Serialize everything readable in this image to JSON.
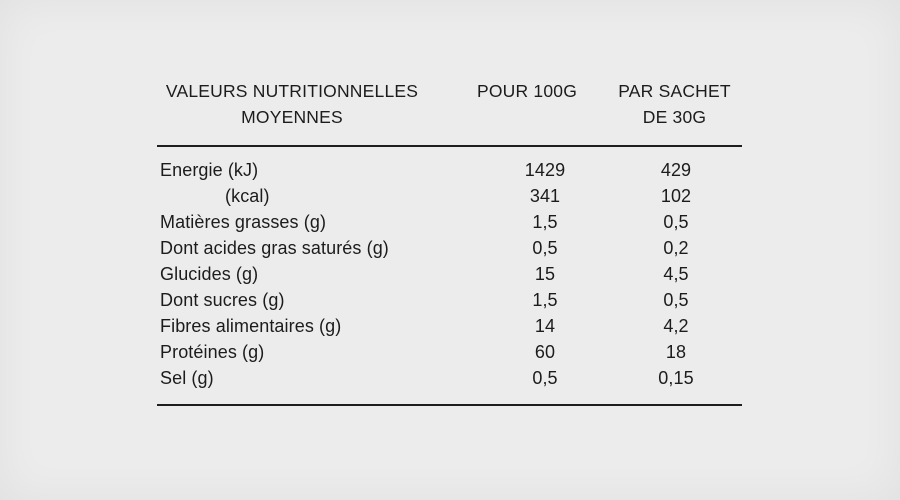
{
  "colors": {
    "background": "#ececec",
    "text": "#1c1c1c",
    "rule": "#1e1e1e"
  },
  "table": {
    "header": {
      "col_label": "VALEURS NUTRITIONNELLES MOYENNES",
      "col_per_100g": "POUR 100G",
      "col_per_sachet": "PAR SACHET DE 30G"
    },
    "rows": [
      {
        "label": "Energie (kJ)",
        "per_100g": "1429",
        "per_sachet": "429"
      },
      {
        "label": "(kcal)",
        "per_100g": "341",
        "per_sachet": "102"
      },
      {
        "label": "Matières grasses (g)",
        "per_100g": "1,5",
        "per_sachet": "0,5"
      },
      {
        "label": "Dont acides gras saturés (g)",
        "per_100g": "0,5",
        "per_sachet": "0,2"
      },
      {
        "label": "Glucides (g)",
        "per_100g": "15",
        "per_sachet": "4,5"
      },
      {
        "label": "Dont sucres (g)",
        "per_100g": "1,5",
        "per_sachet": "0,5"
      },
      {
        "label": "Fibres alimentaires (g)",
        "per_100g": "14",
        "per_sachet": "4,2"
      },
      {
        "label": "Protéines (g)",
        "per_100g": "60",
        "per_sachet": "18"
      },
      {
        "label": "Sel (g)",
        "per_100g": "0,5",
        "per_sachet": "0,15"
      }
    ]
  }
}
